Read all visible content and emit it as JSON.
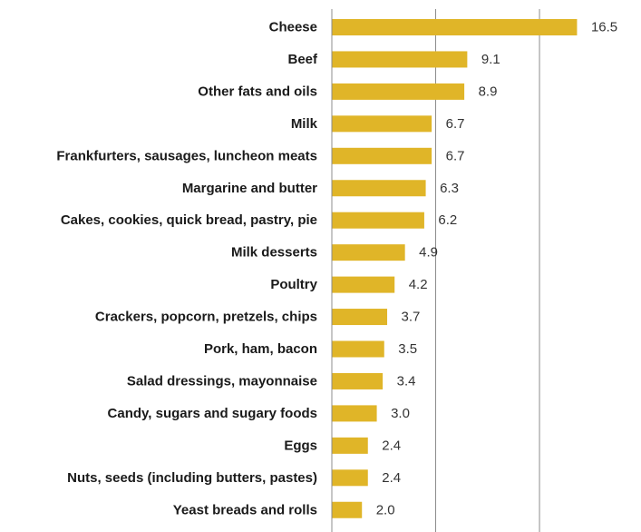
{
  "colors": {
    "bar": "#E0B528",
    "grid": "#8c8c8c",
    "axis": "#8c8c8c",
    "category_text": "#1a1a1a",
    "value_text": "#333333",
    "background": "#ffffff"
  },
  "chart_data": {
    "type": "bar",
    "orientation": "horizontal",
    "title": "",
    "xlabel": "",
    "ylabel": "",
    "xlim": [
      0,
      20
    ],
    "grid": true,
    "legend": "none",
    "categories": [
      "Cheese",
      "Beef",
      "Other fats and oils",
      "Milk",
      "Frankfurters, sausages, luncheon meats",
      "Margarine and butter",
      "Cakes, cookies, quick bread, pastry, pie",
      "Milk desserts",
      "Poultry",
      "Crackers, popcorn, pretzels, chips",
      "Pork, ham, bacon",
      "Salad dressings, mayonnaise",
      "Candy, sugars and sugary foods",
      "Eggs",
      "Nuts, seeds (including butters, pastes)",
      "Yeast breads and rolls"
    ],
    "values": [
      16.5,
      9.1,
      8.9,
      6.7,
      6.7,
      6.3,
      6.2,
      4.9,
      4.2,
      3.7,
      3.5,
      3.4,
      3.0,
      2.4,
      2.4,
      2.0
    ],
    "value_labels": [
      "16.5",
      "9.1",
      "8.9",
      "6.7",
      "6.7",
      "6.3",
      "6.2",
      "4.9",
      "4.2",
      "3.7",
      "3.5",
      "3.4",
      "3.0",
      "2.4",
      "2.4",
      "2.0"
    ],
    "gridlines_at": [
      0,
      7,
      14
    ]
  }
}
